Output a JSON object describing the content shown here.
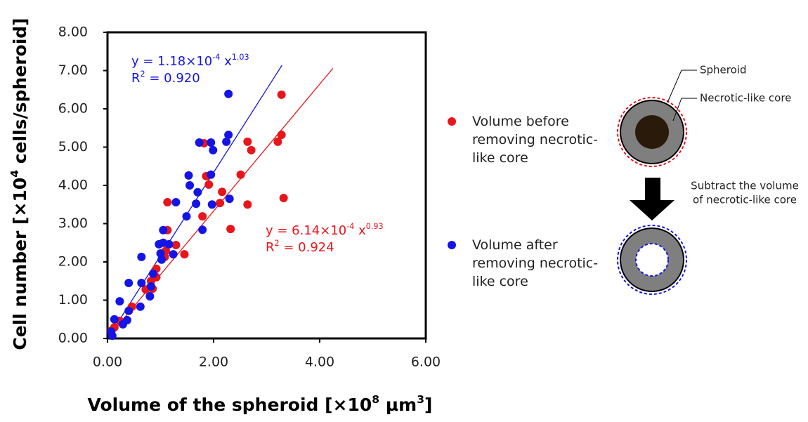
{
  "chart_data": {
    "type": "scatter",
    "xlim": [
      0,
      6
    ],
    "ylim": [
      0,
      8
    ],
    "xticks": [
      {
        "value": 0,
        "label": "0.00"
      },
      {
        "value": 2,
        "label": "2.00"
      },
      {
        "value": 4,
        "label": "4.00"
      },
      {
        "value": 6,
        "label": "6.00"
      }
    ],
    "yticks": [
      {
        "value": 0,
        "label": "0.00"
      },
      {
        "value": 1,
        "label": "1.00"
      },
      {
        "value": 2,
        "label": "2.00"
      },
      {
        "value": 3,
        "label": "3.00"
      },
      {
        "value": 4,
        "label": "4.00"
      },
      {
        "value": 5,
        "label": "5.00"
      },
      {
        "value": 6,
        "label": "6.00"
      },
      {
        "value": 7,
        "label": "7.00"
      },
      {
        "value": 8,
        "label": "8.00"
      }
    ],
    "ylabel": [
      {
        "text": "Cell number  [×10"
      },
      {
        "text": "4",
        "sup": true
      },
      {
        "text": " cells/spheroid]"
      }
    ],
    "xlabel": [
      {
        "text": "Volume of the spheroid [×10"
      },
      {
        "text": "8",
        "sup": true
      },
      {
        "text": " µm"
      },
      {
        "text": "3",
        "sup": true
      },
      {
        "text": "]"
      }
    ],
    "series": [
      {
        "name": "Volume before removing necrotic-like core",
        "color": "#e8151b",
        "x": [
          3.28,
          3.28,
          3.21,
          2.64,
          2.71,
          1.82,
          2.51,
          1.86,
          1.91,
          3.32,
          2.64,
          2.16,
          2.12,
          1.79,
          1.13,
          2.32,
          1.13,
          1.29,
          1.45,
          1.1,
          1.08,
          0.92,
          0.92,
          0.85,
          0.82,
          0.72,
          0.46,
          0.23,
          0.13,
          0.07
        ],
        "values": [
          6.37,
          5.32,
          5.14,
          5.14,
          4.92,
          5.1,
          4.28,
          4.24,
          4.02,
          3.67,
          3.5,
          3.83,
          3.54,
          3.19,
          3.56,
          2.86,
          2.83,
          2.44,
          2.2,
          2.29,
          2.13,
          1.82,
          1.6,
          1.3,
          1.5,
          1.28,
          0.83,
          0.46,
          0.29,
          0.2
        ]
      },
      {
        "name": "Volume after removing necrotic-like core",
        "color": "#1414e6",
        "x": [
          2.28,
          2.28,
          2.24,
          1.95,
          1.73,
          1.99,
          1.53,
          1.95,
          1.55,
          1.7,
          2.3,
          1.97,
          1.67,
          1.29,
          1.49,
          1.79,
          1.05,
          1.05,
          0.97,
          1.16,
          1.0,
          1.24,
          1.02,
          0.64,
          0.4,
          0.64,
          0.86,
          0.82,
          0.8,
          0.62,
          0.4,
          0.23,
          0.37,
          0.13,
          0.29,
          0.07,
          0.09
        ],
        "values": [
          6.39,
          5.32,
          5.14,
          5.12,
          5.12,
          4.92,
          4.26,
          4.28,
          4.0,
          3.82,
          3.65,
          3.5,
          3.52,
          3.56,
          3.19,
          2.84,
          2.83,
          2.5,
          2.46,
          2.46,
          2.22,
          2.2,
          2.06,
          2.13,
          1.45,
          1.45,
          1.69,
          1.36,
          1.1,
          0.83,
          0.72,
          0.97,
          0.48,
          0.5,
          0.37,
          0.18,
          0.07
        ]
      }
    ],
    "trendlines": [
      {
        "color": "#e8151b",
        "x": [
          0.03,
          4.25
        ],
        "values": [
          0.06,
          7.06
        ]
      },
      {
        "color": "#1414e6",
        "x": [
          0.03,
          3.29
        ],
        "values": [
          0.06,
          7.14
        ]
      }
    ],
    "annotations": [
      {
        "color": "#1414e6",
        "lines": [
          [
            {
              "text": "y = 1.18×10"
            },
            {
              "text": "-4",
              "sup": true
            },
            {
              "text": " x"
            },
            {
              "text": "1.03",
              "sup": true
            }
          ],
          [
            {
              "text": "R"
            },
            {
              "text": "2",
              "sup": true
            },
            {
              "text": " = 0.920"
            }
          ]
        ]
      },
      {
        "color": "#e8151b",
        "lines": [
          [
            {
              "text": "y = 6.14×10"
            },
            {
              "text": "-4",
              "sup": true
            },
            {
              "text": " x"
            },
            {
              "text": "0.93",
              "sup": true
            }
          ],
          [
            {
              "text": "R"
            },
            {
              "text": "2",
              "sup": true
            },
            {
              "text": " = 0.924"
            }
          ]
        ]
      }
    ]
  },
  "diagram": {
    "spheroid": "Spheroid",
    "core": "Necrotic-like core",
    "subtract": [
      "Subtract the volume",
      "of necrotic-like core"
    ]
  }
}
